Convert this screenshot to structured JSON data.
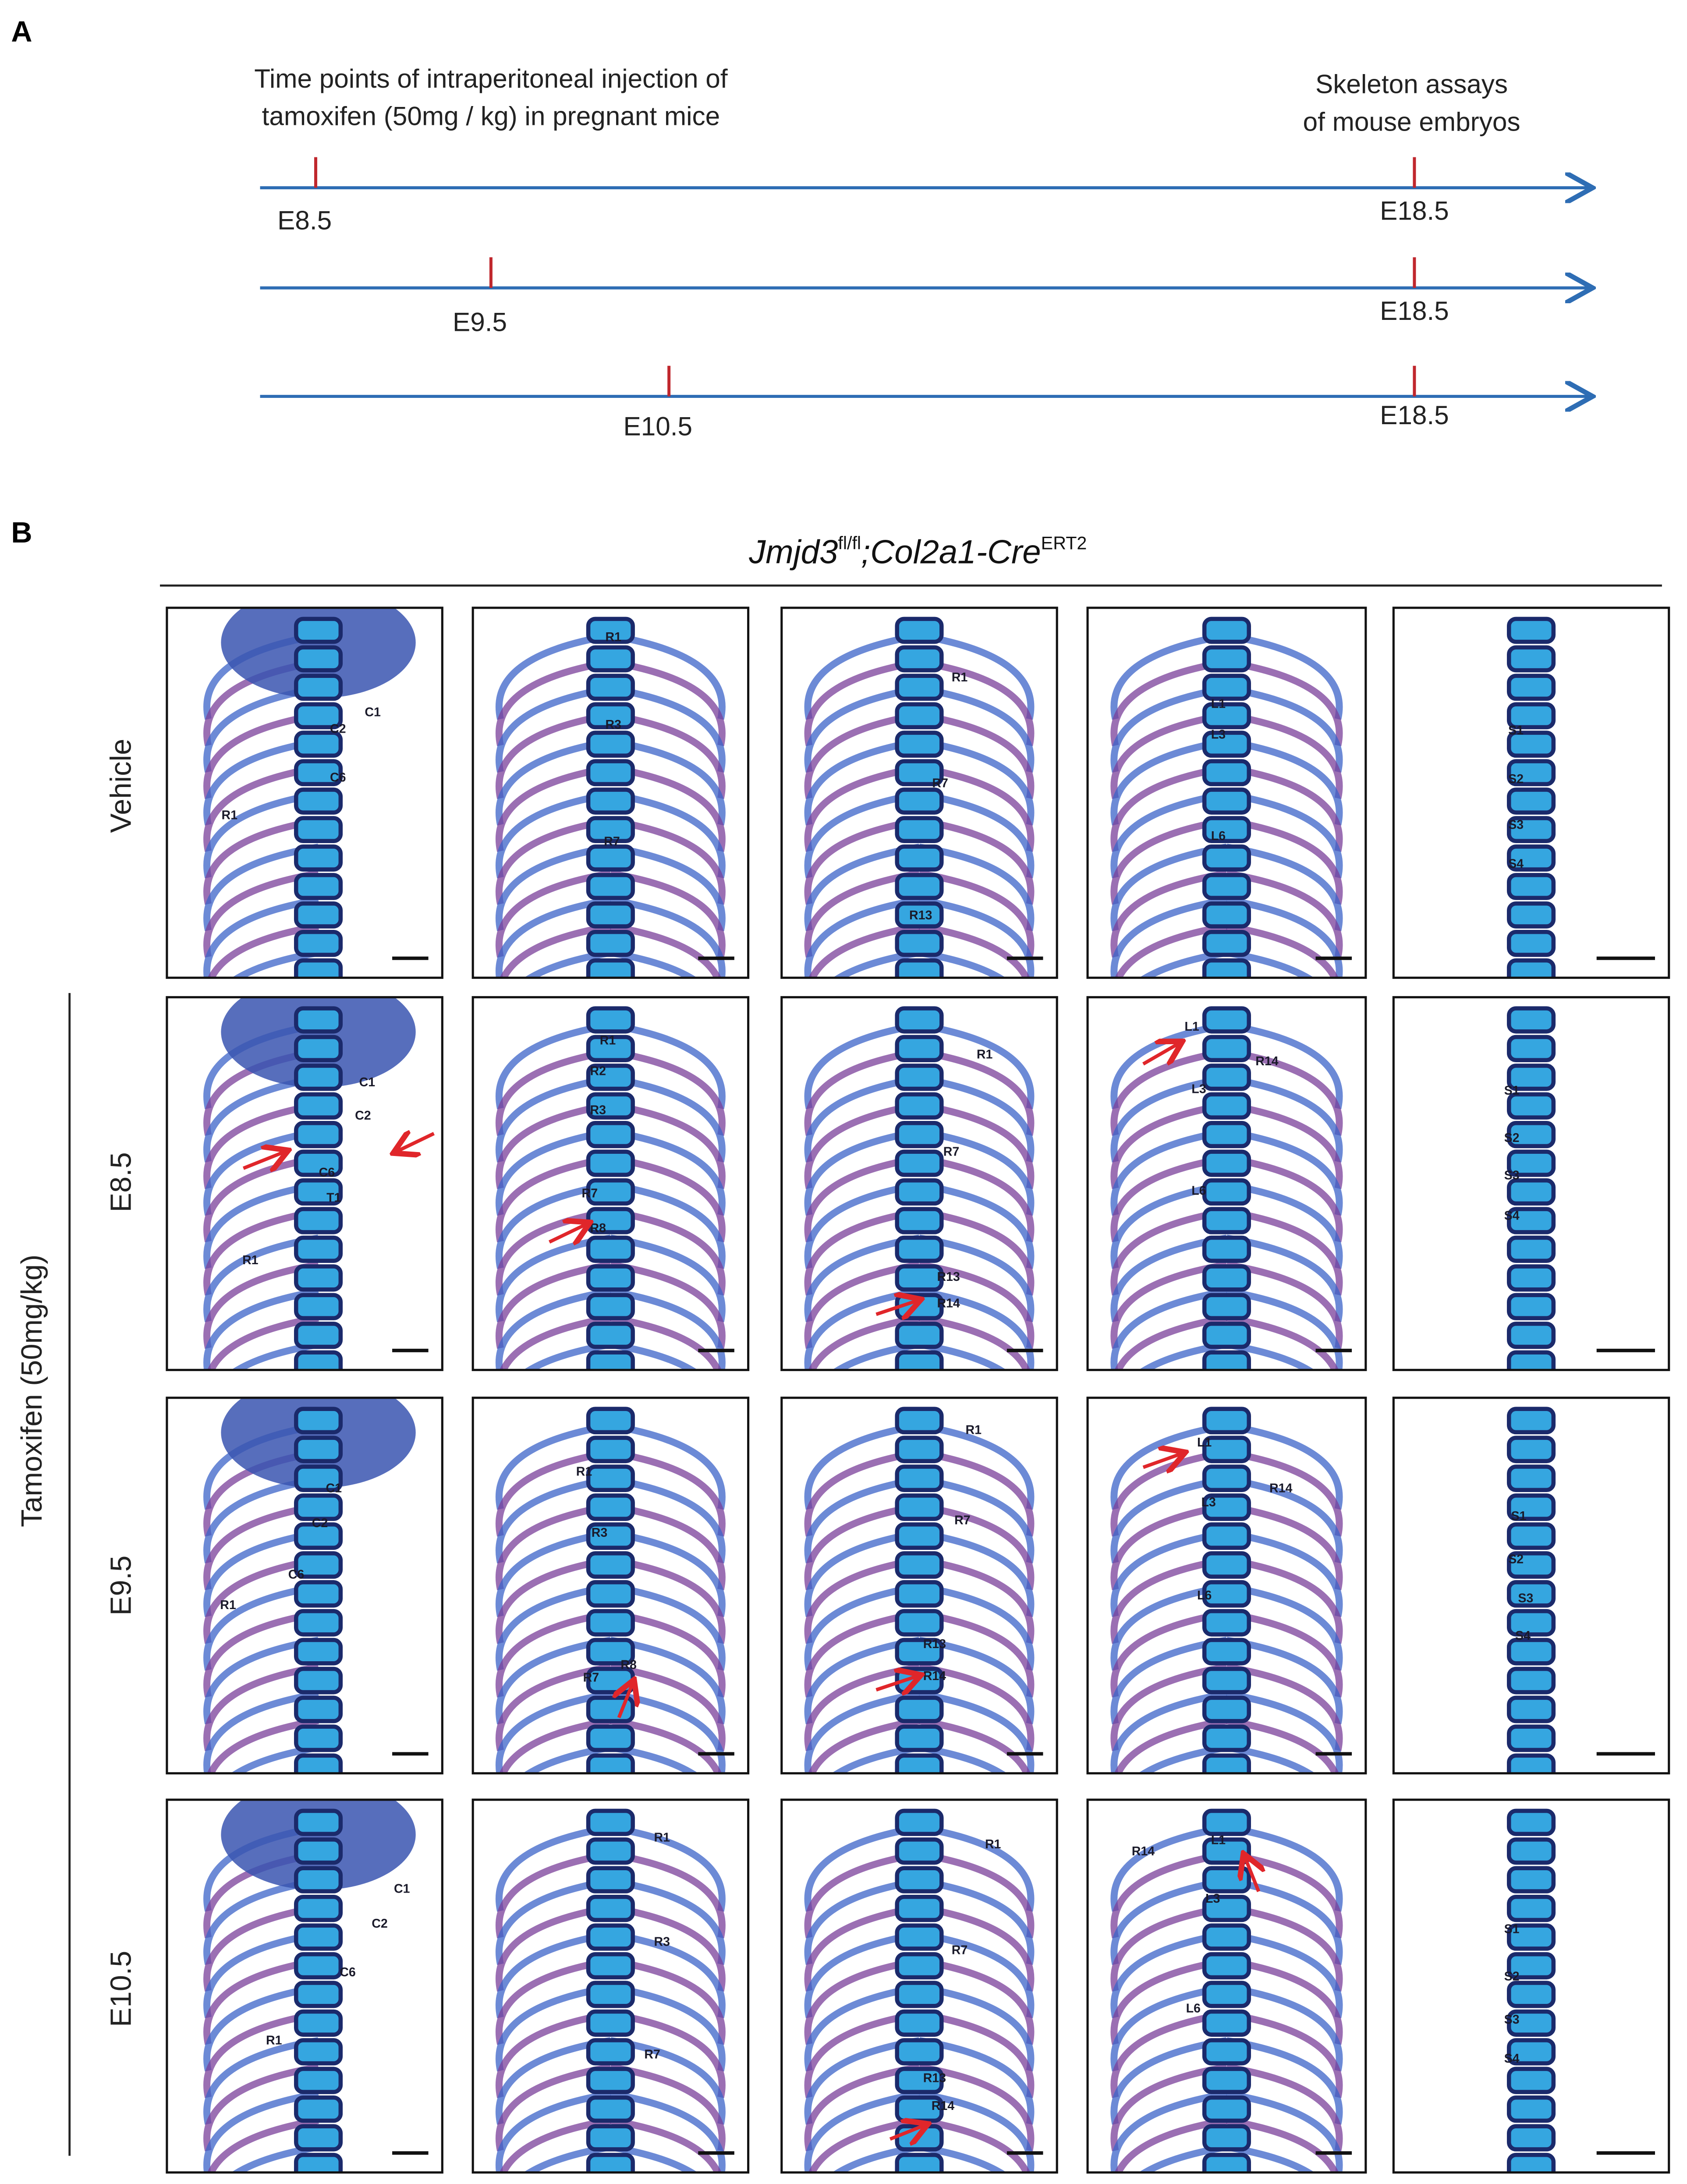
{
  "panel_a": {
    "label": "A",
    "injection_caption": [
      "Time points of intraperitoneal injection of",
      "tamoxifen (50mg / kg) in pregnant mice"
    ],
    "assay_caption": [
      "Skeleton assays",
      "of mouse embryos"
    ],
    "timelines": [
      {
        "injection": "E8.5",
        "assay": "E18.5"
      },
      {
        "injection": "E9.5",
        "assay": "E18.5"
      },
      {
        "injection": "E10.5",
        "assay": "E18.5"
      }
    ]
  },
  "panel_b": {
    "label": "B",
    "genotype": {
      "gene": "Jmjd3",
      "allele": "fl/fl",
      "separator": ";",
      "driver": "Col2a1-Cre",
      "driver_sup": "ERT2"
    },
    "treatment_label": "Tamoxifen (50mg/kg)",
    "rows": [
      {
        "label": "Vehicle",
        "images": [
          {
            "labels": [
              "C1",
              "C2",
              "C6",
              "R1"
            ]
          },
          {
            "labels": [
              "R1",
              "R3",
              "R7"
            ]
          },
          {
            "labels": [
              "R1",
              "R7",
              "R13"
            ]
          },
          {
            "labels": [
              "L1",
              "L3",
              "L6"
            ]
          },
          {
            "labels": [
              "S1",
              "S2",
              "S3",
              "S4"
            ]
          }
        ]
      },
      {
        "label": "E8.5",
        "images": [
          {
            "labels": [
              "C1",
              "C2",
              "C6",
              "T1",
              "R1"
            ]
          },
          {
            "labels": [
              "R1",
              "R2",
              "R3",
              "R7",
              "R8"
            ]
          },
          {
            "labels": [
              "R1",
              "R7",
              "R13",
              "R14"
            ]
          },
          {
            "labels": [
              "L1",
              "R14",
              "L3",
              "L6"
            ]
          },
          {
            "labels": [
              "S1",
              "S2",
              "S3",
              "S4"
            ]
          }
        ]
      },
      {
        "label": "E9.5",
        "images": [
          {
            "labels": [
              "C1",
              "C2",
              "C6",
              "R1"
            ]
          },
          {
            "labels": [
              "R1",
              "R3",
              "R7",
              "R8"
            ]
          },
          {
            "labels": [
              "R1",
              "R7",
              "R13",
              "R14"
            ]
          },
          {
            "labels": [
              "L1",
              "R14",
              "L3",
              "L6"
            ]
          },
          {
            "labels": [
              "S1",
              "S2",
              "S3",
              "S4"
            ]
          }
        ]
      },
      {
        "label": "E10.5",
        "images": [
          {
            "labels": [
              "C1",
              "C2",
              "C6",
              "R1"
            ]
          },
          {
            "labels": [
              "R1",
              "R3",
              "R7"
            ]
          },
          {
            "labels": [
              "R1",
              "R7",
              "R13",
              "R14"
            ]
          },
          {
            "labels": [
              "R14",
              "L1",
              "L3",
              "L6"
            ]
          },
          {
            "labels": [
              "S1",
              "S2",
              "S3",
              "S4"
            ]
          }
        ]
      }
    ]
  }
}
